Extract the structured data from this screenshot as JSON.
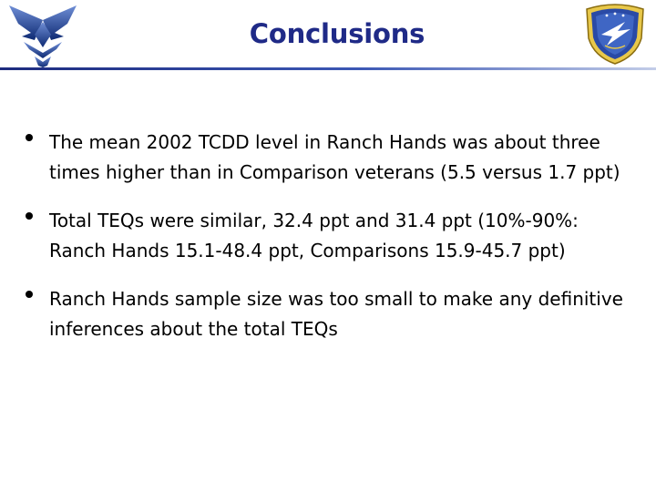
{
  "slide": {
    "title": "Conclusions",
    "bullets": [
      {
        "text": "The mean 2002 TCDD level in Ranch Hands was about three times higher than in Comparison veterans (5.5 versus 1.7 ppt)"
      },
      {
        "text": "Total TEQs were similar, 32.4 ppt and 31.4 ppt (10%-90%: Ranch Hands 15.1-48.4 ppt, Comparisons 15.9-45.7 ppt)"
      },
      {
        "text": "Ranch Hands sample size was too small to make any definitive inferences about the total TEQs"
      }
    ]
  },
  "logos": {
    "left": {
      "icon": "air-force-wings-icon",
      "color": "#1f4a9c"
    },
    "right": {
      "icon": "afrl-shield-seal-icon",
      "color": "#1f3b8f"
    }
  },
  "colors": {
    "title": "#1f2a87",
    "rule_dark": "#1d2b7e",
    "rule_light": "#c3cde8",
    "text": "#000000"
  }
}
